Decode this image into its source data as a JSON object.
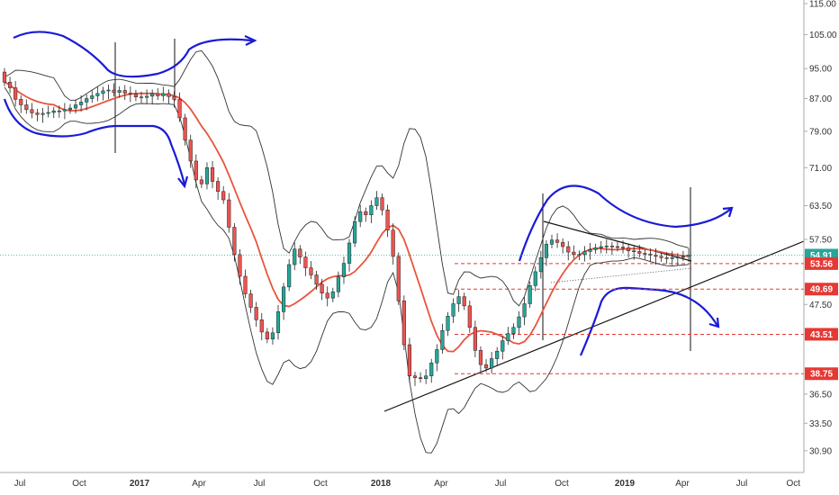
{
  "chart_data": {
    "type": "candlestick",
    "timeframe": "weekly",
    "x_axis": {
      "labels": [
        "Jul",
        "Oct",
        "2017",
        "Apr",
        "Jul",
        "Oct",
        "2018",
        "Apr",
        "Jul",
        "Oct",
        "2019",
        "Apr",
        "Jul",
        "Oct"
      ],
      "bold_labels": [
        "2017",
        "2018",
        "2019"
      ]
    },
    "y_axis": {
      "scale": "log",
      "ylim": [
        30.0,
        115.0
      ],
      "ticks": [
        "115.00",
        "105.00",
        "95.00",
        "87.00",
        "79.00",
        "71.00",
        "63.50",
        "57.50",
        "47.50",
        "36.50",
        "33.50",
        "30.90"
      ],
      "tick_values": [
        115.0,
        105.0,
        95.0,
        87.0,
        79.0,
        71.0,
        63.5,
        57.5,
        47.5,
        36.5,
        33.5,
        30.9
      ]
    },
    "price_badges": [
      {
        "label": "54.91",
        "value": 54.91,
        "color": "#26a69a"
      },
      {
        "label": "53.56",
        "value": 53.56,
        "color": "#e53935"
      },
      {
        "label": "49.69",
        "value": 49.69,
        "color": "#e53935"
      },
      {
        "label": "43.51",
        "value": 43.51,
        "color": "#e53935"
      },
      {
        "label": "38.75",
        "value": 38.75,
        "color": "#e53935"
      }
    ],
    "support_levels": [
      53.56,
      49.69,
      43.51,
      38.75
    ],
    "current_price": 54.91,
    "closes": [
      91.3,
      89.8,
      86.8,
      85.4,
      84.2,
      83.4,
      83.0,
      83.3,
      83.5,
      83.9,
      83.9,
      84.2,
      84.6,
      85.4,
      86.1,
      87.0,
      87.7,
      88.3,
      89.0,
      89.2,
      88.6,
      89.1,
      88.4,
      88.2,
      87.4,
      87.3,
      87.6,
      88.3,
      87.7,
      88.3,
      87.5,
      86.8,
      82.2,
      77.0,
      72.4,
      68.5,
      67.7,
      71.0,
      68.2,
      66.2,
      64.6,
      59.6,
      55.0,
      51.6,
      49.0,
      47.1,
      45.4,
      43.8,
      42.9,
      43.7,
      46.5,
      50.0,
      53.4,
      55.9,
      54.6,
      52.9,
      51.8,
      50.4,
      49.1,
      48.4,
      49.3,
      51.5,
      53.6,
      56.9,
      60.6,
      62.4,
      61.8,
      63.5,
      65.0,
      62.7,
      59.1,
      54.7,
      48.0,
      42.2,
      38.5,
      38.3,
      38.2,
      38.5,
      40.0,
      41.6,
      44.0,
      45.9,
      47.6,
      48.6,
      47.3,
      44.4,
      41.5,
      39.8,
      39.4,
      40.5,
      41.4,
      42.7,
      43.6,
      44.4,
      45.8,
      47.6,
      50.2,
      52.3,
      54.5,
      56.7,
      57.4,
      57.0,
      56.3,
      55.4,
      55.0,
      55.0,
      55.5,
      55.8,
      56.1,
      56.3,
      56.4,
      56.3,
      56.2,
      56.1,
      55.6,
      55.5,
      55.2,
      55.1,
      54.9,
      54.7,
      54.5,
      54.4,
      54.5,
      54.6,
      54.7,
      54.9
    ],
    "series": [
      {
        "name": "",
        "color": "#e8553d",
        "values": [
          91.3,
          89.8,
          86.8,
          85.4,
          84.2,
          83.4,
          83.0,
          83.3,
          83.5,
          83.9,
          83.9,
          84.2,
          84.6,
          85.4,
          86.1,
          87.0,
          87.7,
          88.3,
          89.0,
          89.2,
          88.6,
          89.1,
          88.4,
          88.2,
          87.4,
          87.3,
          87.6,
          88.3,
          87.7,
          88.3,
          87.5,
          86.8,
          82.2,
          77.0,
          72.4,
          68.5,
          67.7,
          71.0,
          68.2,
          66.2,
          64.6,
          59.6,
          55.0,
          51.6,
          49.0,
          47.1,
          45.4,
          43.8,
          42.9,
          43.7,
          46.5,
          50.0,
          53.4,
          55.9,
          54.6,
          52.9,
          51.8,
          50.4,
          49.1,
          48.4,
          49.3,
          51.5,
          53.6,
          56.9,
          60.6,
          62.4,
          61.8,
          63.5,
          65.0,
          62.7,
          59.1,
          54.7,
          48.0,
          42.2,
          38.5,
          38.3,
          38.2,
          38.5,
          40.0,
          41.6,
          44.0,
          45.9,
          47.6,
          48.6,
          47.3,
          44.4,
          41.5,
          39.8,
          39.4,
          40.5,
          41.4,
          42.7,
          43.6,
          44.4,
          45.8,
          47.6,
          50.2,
          52.3,
          54.5,
          56.7,
          57.4,
          57.0,
          56.3,
          55.4,
          55.0,
          55.0,
          55.5,
          55.8,
          56.1,
          56.3,
          56.4,
          56.3,
          56.2,
          56.1,
          55.6,
          55.5,
          55.2,
          55.1,
          54.9,
          54.7,
          54.5,
          54.4,
          54.5,
          54.6,
          54.7,
          54.9
        ]
      },
      {
        "name": "",
        "color": "#333333",
        "values": []
      },
      {
        "name": "",
        "color": "#333333",
        "values": []
      }
    ],
    "colors": {
      "up": "#26a69a",
      "down": "#ef5350",
      "arrows": "#1a1ad6",
      "ma": "#e8553d",
      "bands": "#333333"
    },
    "annotations": [
      "ascending trendline",
      "symmetrical triangle",
      "blue projection arrows",
      "dashed red support lines"
    ],
    "grid": false,
    "legend": "none"
  }
}
